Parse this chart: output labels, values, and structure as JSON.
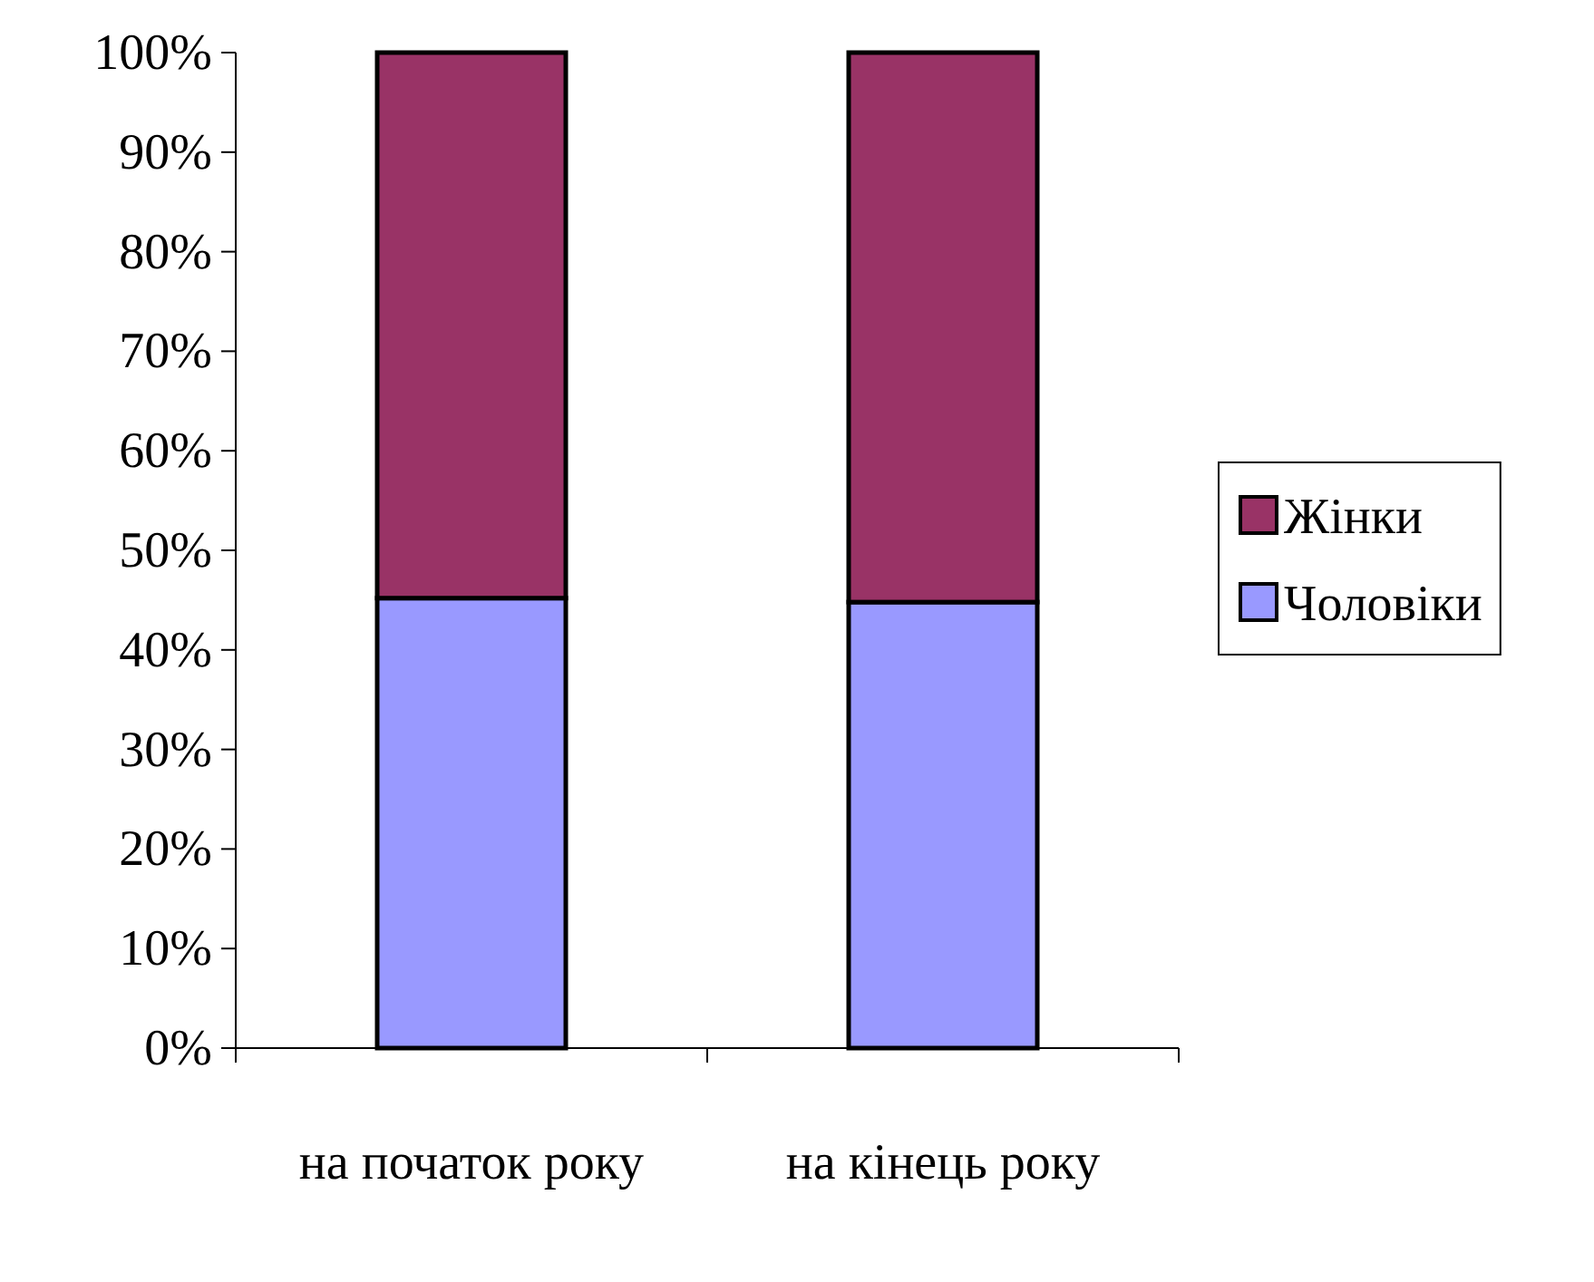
{
  "chart_data": {
    "type": "bar",
    "stacked": true,
    "categories": [
      "на початок року",
      "на кінець року"
    ],
    "series": [
      {
        "name": "Чоловіки",
        "color": "#9999ff",
        "values": [
          45.2,
          44.8
        ]
      },
      {
        "name": "Жінки",
        "color": "#993366",
        "values": [
          54.8,
          55.2
        ]
      }
    ],
    "ylim": [
      0,
      100
    ],
    "yticks": [
      {
        "value": 0,
        "label": "0%"
      },
      {
        "value": 10,
        "label": "10%"
      },
      {
        "value": 20,
        "label": "20%"
      },
      {
        "value": 30,
        "label": "30%"
      },
      {
        "value": 40,
        "label": "40%"
      },
      {
        "value": 50,
        "label": "50%"
      },
      {
        "value": 60,
        "label": "60%"
      },
      {
        "value": 70,
        "label": "70%"
      },
      {
        "value": 80,
        "label": "80%"
      },
      {
        "value": 90,
        "label": "90%"
      },
      {
        "value": 100,
        "label": "100%"
      }
    ],
    "legend": "right",
    "grid": false
  }
}
